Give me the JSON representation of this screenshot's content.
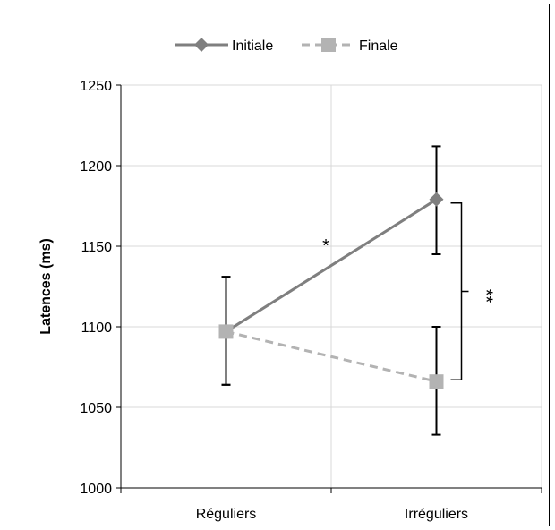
{
  "chart_data": {
    "type": "line",
    "xlabel": "",
    "ylabel": "Latences (ms)",
    "ylim": [
      1000,
      1250
    ],
    "yticks": [
      "1000",
      "1050",
      "1100",
      "1150",
      "1200",
      "1250"
    ],
    "categories": [
      "Réguliers",
      "Irréguliers"
    ],
    "grid": true,
    "legend_position": "top",
    "series": [
      {
        "name": "Initiale",
        "values": [
          1097,
          1179
        ],
        "error_low": [
          1064,
          1145
        ],
        "error_high": [
          1131,
          1212
        ],
        "color": "#7f7f7f",
        "marker": "diamond",
        "dash": "solid"
      },
      {
        "name": "Finale",
        "values": [
          1097,
          1066
        ],
        "error_low": [
          1064,
          1033
        ],
        "error_high": [
          1131,
          1100
        ],
        "color": "#b3b3b3",
        "marker": "square",
        "dash": "dashed"
      }
    ],
    "annotations": [
      {
        "text": "*"
      },
      {
        "text": "**"
      }
    ]
  }
}
